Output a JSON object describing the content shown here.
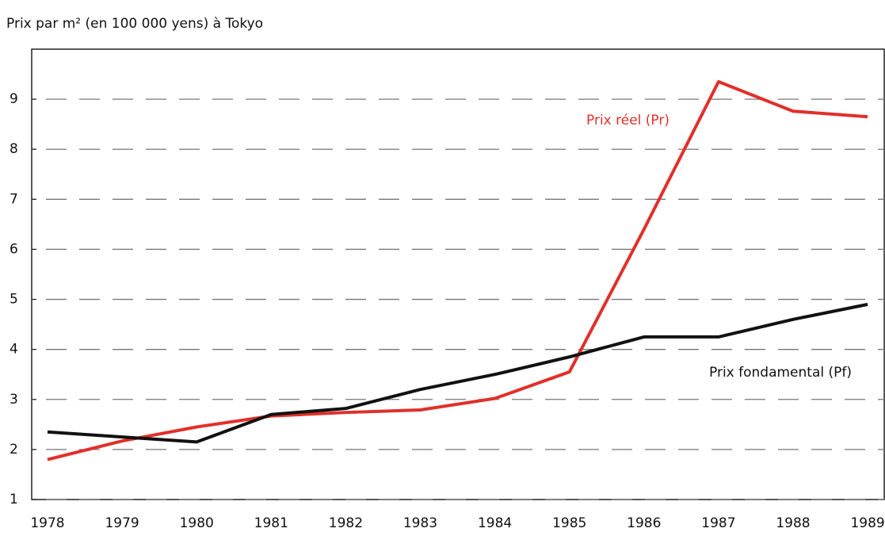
{
  "chart_data": {
    "type": "line",
    "title": "Prix par m² (en 100 000 yens) à Tokyo",
    "categories": [
      "1978",
      "1979",
      "1980",
      "1981",
      "1982",
      "1983",
      "1984",
      "1985",
      "1986",
      "1987",
      "1988",
      "1989"
    ],
    "series": [
      {
        "name": "Prix réel (Pr)",
        "color": "#e0302a",
        "values": [
          1.8,
          2.17,
          2.45,
          2.67,
          2.74,
          2.79,
          3.02,
          3.55,
          6.4,
          9.35,
          8.76,
          8.65
        ]
      },
      {
        "name": "Prix fondamental (Pf)",
        "color": "#111111",
        "values": [
          2.35,
          2.25,
          2.15,
          2.7,
          2.82,
          3.2,
          3.5,
          3.85,
          4.25,
          4.25,
          4.6,
          4.9
        ]
      }
    ],
    "ylim": [
      1,
      10
    ],
    "yticks": [
      1,
      2,
      3,
      4,
      5,
      6,
      7,
      8,
      9
    ],
    "grid": true
  }
}
